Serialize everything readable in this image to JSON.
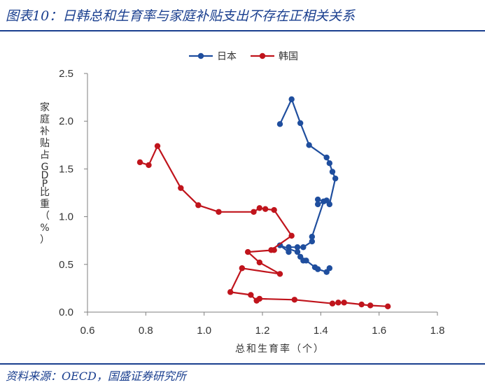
{
  "figure": {
    "title": "图表10：日韩总和生育率与家庭补贴支出不存在正相关关系",
    "source": "资料来源：OECD，国盛证券研究所"
  },
  "chart_data": {
    "type": "line",
    "xlabel": "总和生育率（个）",
    "ylabel": "家庭补贴占GDP比重（%）",
    "xlim": [
      0.6,
      1.8
    ],
    "ylim": [
      0,
      2.5
    ],
    "x_ticks": [
      "0.6",
      "0.8",
      "1.0",
      "1.2",
      "1.4",
      "1.6",
      "1.8"
    ],
    "y_ticks": [
      "0.0",
      "0.5",
      "1.0",
      "1.5",
      "2.0",
      "2.5"
    ],
    "x_tick_values": [
      0.6,
      0.8,
      1.0,
      1.2,
      1.4,
      1.6,
      1.8
    ],
    "y_tick_values": [
      0,
      0.5,
      1.0,
      1.5,
      2.0,
      2.5
    ],
    "grid": false,
    "legend_position": "top-center",
    "series": [
      {
        "name": "日本",
        "color": "#1f4e9e",
        "points": [
          [
            1.26,
            1.97
          ],
          [
            1.3,
            2.23
          ],
          [
            1.33,
            1.98
          ],
          [
            1.36,
            1.75
          ],
          [
            1.42,
            1.62
          ],
          [
            1.43,
            1.56
          ],
          [
            1.44,
            1.47
          ],
          [
            1.45,
            1.4
          ],
          [
            1.43,
            1.13
          ],
          [
            1.42,
            1.17
          ],
          [
            1.39,
            1.13
          ],
          [
            1.39,
            1.18
          ],
          [
            1.41,
            1.16
          ],
          [
            1.37,
            0.79
          ],
          [
            1.37,
            0.74
          ],
          [
            1.34,
            0.68
          ],
          [
            1.32,
            0.68
          ],
          [
            1.29,
            0.68
          ],
          [
            1.29,
            0.63
          ],
          [
            1.26,
            0.7
          ],
          [
            1.32,
            0.63
          ],
          [
            1.33,
            0.58
          ],
          [
            1.34,
            0.54
          ],
          [
            1.35,
            0.54
          ],
          [
            1.38,
            0.47
          ],
          [
            1.39,
            0.45
          ],
          [
            1.42,
            0.42
          ],
          [
            1.43,
            0.46
          ]
        ]
      },
      {
        "name": "韩国",
        "color": "#c0141c",
        "points": [
          [
            0.78,
            1.57
          ],
          [
            0.81,
            1.54
          ],
          [
            0.84,
            1.74
          ],
          [
            0.92,
            1.3
          ],
          [
            0.98,
            1.12
          ],
          [
            1.05,
            1.05
          ],
          [
            1.17,
            1.05
          ],
          [
            1.19,
            1.09
          ],
          [
            1.21,
            1.08
          ],
          [
            1.24,
            1.07
          ],
          [
            1.3,
            0.8
          ],
          [
            1.23,
            0.65
          ],
          [
            1.24,
            0.65
          ],
          [
            1.15,
            0.63
          ],
          [
            1.19,
            0.52
          ],
          [
            1.26,
            0.4
          ],
          [
            1.13,
            0.46
          ],
          [
            1.09,
            0.21
          ],
          [
            1.16,
            0.18
          ],
          [
            1.18,
            0.12
          ],
          [
            1.19,
            0.14
          ],
          [
            1.31,
            0.13
          ],
          [
            1.44,
            0.09
          ],
          [
            1.46,
            0.1
          ],
          [
            1.48,
            0.1
          ],
          [
            1.54,
            0.08
          ],
          [
            1.57,
            0.07
          ],
          [
            1.63,
            0.06
          ]
        ]
      }
    ]
  }
}
